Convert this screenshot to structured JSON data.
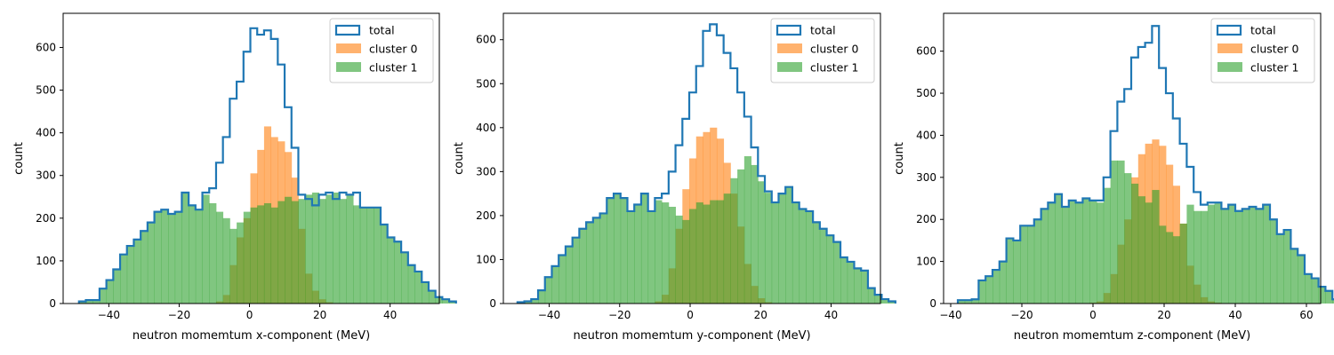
{
  "chart_data": [
    {
      "type": "bar",
      "histogram": true,
      "xlabel": "neutron momemtum x-component (MeV)",
      "ylabel": "count",
      "xlim": [
        -53,
        54
      ],
      "ylim": [
        0,
        680
      ],
      "xticks": [
        -40,
        -20,
        0,
        20,
        40
      ],
      "yticks": [
        0,
        100,
        200,
        300,
        400,
        500,
        600
      ],
      "bin_start": -48.5,
      "bin_width": 1.95,
      "legend_position": "top-right",
      "series": [
        {
          "name": "total",
          "style": "step",
          "color": "#1f77b4",
          "values": [
            5,
            8,
            8,
            35,
            55,
            80,
            115,
            135,
            150,
            170,
            190,
            215,
            220,
            210,
            215,
            260,
            230,
            220,
            260,
            270,
            330,
            390,
            480,
            520,
            590,
            645,
            630,
            640,
            620,
            560,
            460,
            365,
            255,
            245,
            230,
            255,
            260,
            245,
            260,
            255,
            260,
            225,
            225,
            225,
            185,
            155,
            145,
            120,
            90,
            75,
            50,
            30,
            15,
            10,
            5
          ]
        },
        {
          "name": "cluster 0",
          "style": "fill",
          "color": "#ff7f0e",
          "opacity": 0.6,
          "values": [
            0,
            0,
            0,
            0,
            0,
            0,
            0,
            0,
            0,
            0,
            0,
            0,
            0,
            0,
            0,
            0,
            0,
            0,
            0,
            0,
            5,
            20,
            90,
            155,
            200,
            305,
            360,
            415,
            390,
            380,
            355,
            295,
            175,
            70,
            30,
            10,
            3,
            1,
            0,
            0,
            0,
            0,
            0,
            0,
            0,
            0,
            0,
            0,
            0,
            0,
            0,
            0,
            0,
            0,
            0
          ]
        },
        {
          "name": "cluster 1",
          "style": "fill",
          "color": "#2ca02c",
          "opacity": 0.6,
          "values": [
            5,
            8,
            8,
            35,
            55,
            80,
            115,
            135,
            150,
            170,
            190,
            215,
            220,
            210,
            215,
            260,
            230,
            220,
            255,
            235,
            215,
            200,
            175,
            190,
            215,
            225,
            230,
            235,
            225,
            240,
            250,
            240,
            245,
            255,
            260,
            245,
            255,
            260,
            245,
            255,
            230,
            225,
            225,
            225,
            185,
            155,
            145,
            120,
            90,
            75,
            50,
            30,
            15,
            10,
            5
          ]
        }
      ]
    },
    {
      "type": "bar",
      "histogram": true,
      "xlabel": "neutron momemtum y-component (MeV)",
      "ylabel": "count",
      "xlim": [
        -53,
        54
      ],
      "ylim": [
        0,
        660
      ],
      "xticks": [
        -40,
        -20,
        0,
        20,
        40
      ],
      "yticks": [
        0,
        100,
        200,
        300,
        400,
        500,
        600
      ],
      "bin_start": -49.0,
      "bin_width": 1.95,
      "legend_position": "top-right",
      "series": [
        {
          "name": "total",
          "style": "step",
          "color": "#1f77b4",
          "values": [
            3,
            5,
            10,
            30,
            60,
            85,
            110,
            130,
            150,
            170,
            185,
            195,
            205,
            240,
            250,
            240,
            210,
            225,
            250,
            210,
            240,
            250,
            300,
            360,
            420,
            480,
            540,
            620,
            635,
            610,
            570,
            535,
            480,
            425,
            355,
            290,
            255,
            230,
            250,
            265,
            230,
            215,
            210,
            185,
            170,
            155,
            140,
            105,
            95,
            80,
            75,
            35,
            20,
            10,
            5
          ]
        },
        {
          "name": "cluster 0",
          "style": "fill",
          "color": "#ff7f0e",
          "opacity": 0.6,
          "values": [
            0,
            0,
            0,
            0,
            0,
            0,
            0,
            0,
            0,
            0,
            0,
            0,
            0,
            0,
            0,
            0,
            0,
            0,
            0,
            0,
            5,
            20,
            80,
            170,
            260,
            330,
            380,
            390,
            400,
            375,
            320,
            250,
            175,
            90,
            40,
            12,
            3,
            1,
            0,
            0,
            0,
            0,
            0,
            0,
            0,
            0,
            0,
            0,
            0,
            0,
            0,
            0,
            0,
            0,
            0
          ]
        },
        {
          "name": "cluster 1",
          "style": "fill",
          "color": "#2ca02c",
          "opacity": 0.6,
          "values": [
            3,
            5,
            10,
            30,
            60,
            85,
            110,
            130,
            150,
            170,
            185,
            195,
            205,
            240,
            250,
            240,
            210,
            225,
            250,
            210,
            235,
            230,
            220,
            200,
            190,
            215,
            230,
            225,
            235,
            235,
            250,
            285,
            305,
            335,
            315,
            278,
            252,
            229,
            250,
            265,
            230,
            215,
            210,
            185,
            170,
            155,
            140,
            105,
            95,
            80,
            75,
            35,
            20,
            10,
            5
          ]
        }
      ]
    },
    {
      "type": "bar",
      "histogram": true,
      "xlabel": "neutron momemtum z-component (MeV)",
      "ylabel": "count",
      "xlim": [
        -42,
        64
      ],
      "ylim": [
        0,
        690
      ],
      "xticks": [
        -40,
        -20,
        0,
        20,
        40,
        60
      ],
      "yticks": [
        0,
        100,
        200,
        300,
        400,
        500,
        600
      ],
      "bin_start": -38.0,
      "bin_width": 1.95,
      "legend_position": "top-right",
      "series": [
        {
          "name": "total",
          "style": "step",
          "color": "#1f77b4",
          "values": [
            8,
            8,
            10,
            55,
            65,
            80,
            100,
            155,
            150,
            185,
            185,
            200,
            225,
            240,
            260,
            230,
            245,
            240,
            250,
            245,
            245,
            300,
            410,
            480,
            510,
            585,
            610,
            620,
            660,
            560,
            500,
            440,
            380,
            325,
            265,
            235,
            240,
            240,
            225,
            235,
            220,
            225,
            230,
            225,
            235,
            200,
            165,
            175,
            130,
            115,
            70,
            60,
            40,
            30,
            10
          ]
        },
        {
          "name": "cluster 0",
          "style": "fill",
          "color": "#ff7f0e",
          "opacity": 0.6,
          "values": [
            0,
            0,
            0,
            0,
            0,
            0,
            0,
            0,
            0,
            0,
            0,
            0,
            0,
            0,
            0,
            0,
            0,
            0,
            0,
            2,
            5,
            25,
            70,
            140,
            200,
            300,
            355,
            380,
            390,
            375,
            330,
            280,
            190,
            90,
            45,
            15,
            5,
            2,
            0,
            0,
            0,
            0,
            0,
            0,
            0,
            0,
            0,
            0,
            0,
            0,
            0,
            0,
            0,
            0,
            0
          ]
        },
        {
          "name": "cluster 1",
          "style": "fill",
          "color": "#2ca02c",
          "opacity": 0.6,
          "values": [
            8,
            8,
            10,
            55,
            65,
            80,
            100,
            155,
            150,
            185,
            185,
            200,
            225,
            240,
            260,
            230,
            245,
            240,
            250,
            243,
            240,
            275,
            340,
            340,
            310,
            285,
            255,
            240,
            270,
            185,
            170,
            160,
            190,
            235,
            220,
            220,
            235,
            238,
            225,
            235,
            220,
            225,
            230,
            225,
            235,
            200,
            165,
            175,
            130,
            115,
            70,
            60,
            40,
            30,
            10
          ]
        }
      ]
    }
  ]
}
